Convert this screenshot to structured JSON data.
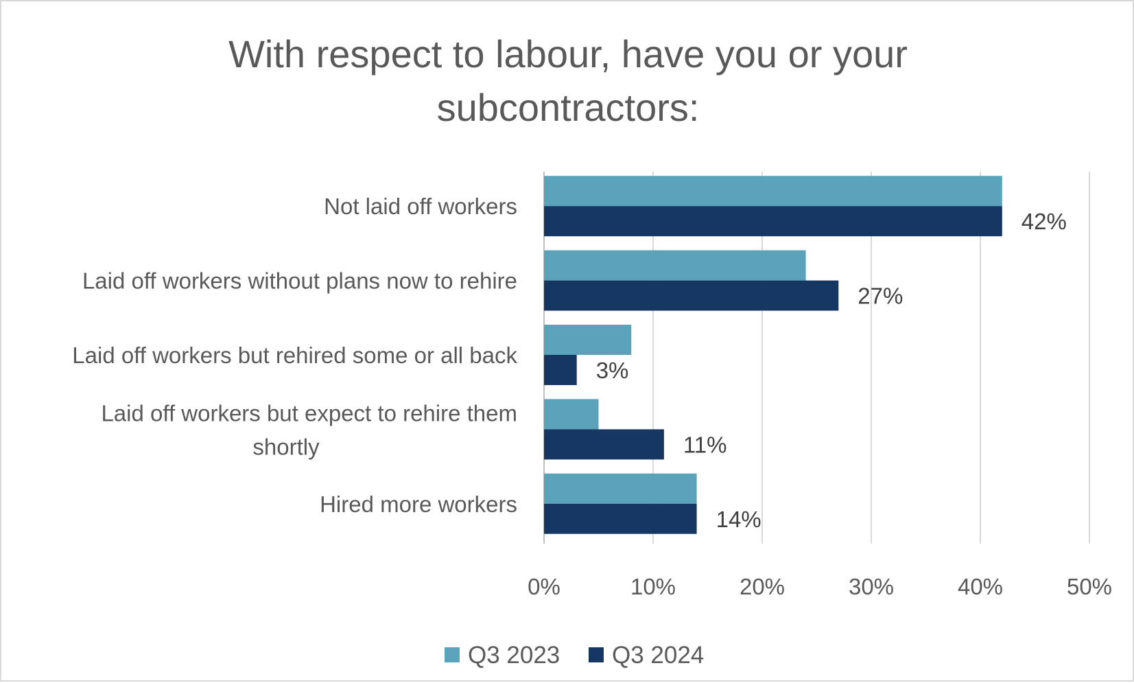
{
  "chart_data": {
    "type": "bar",
    "orientation": "horizontal",
    "title_lines": [
      "With respect to labour, have you or your",
      "subcontractors:"
    ],
    "categories": [
      "Not laid off workers",
      "Laid off workers without plans now to rehire",
      "Laid off workers but rehired some or all back",
      "Laid off workers but expect to rehire them shortly",
      "Hired more workers"
    ],
    "category_label_lines": [
      [
        "Not laid off workers"
      ],
      [
        "Laid off workers without plans now to rehire"
      ],
      [
        "Laid off workers but rehired some or all back"
      ],
      [
        "Laid off workers but expect to rehire them",
        "shortly"
      ],
      [
        "Hired more workers"
      ]
    ],
    "series": [
      {
        "name": "Q3 2023",
        "color": "#5BA3BA",
        "values": [
          42,
          24,
          8,
          5,
          14
        ]
      },
      {
        "name": "Q3 2024",
        "color": "#173763",
        "values": [
          42,
          27,
          3,
          11,
          14
        ],
        "data_labels": [
          "42%",
          "27%",
          "3%",
          "11%",
          "14%"
        ]
      }
    ],
    "xlim": [
      0,
      50
    ],
    "x_ticks": [
      0,
      10,
      20,
      30,
      40,
      50
    ],
    "x_tick_labels": [
      "0%",
      "10%",
      "20%",
      "30%",
      "40%",
      "50%"
    ],
    "grid": true,
    "legend_position": "bottom"
  }
}
